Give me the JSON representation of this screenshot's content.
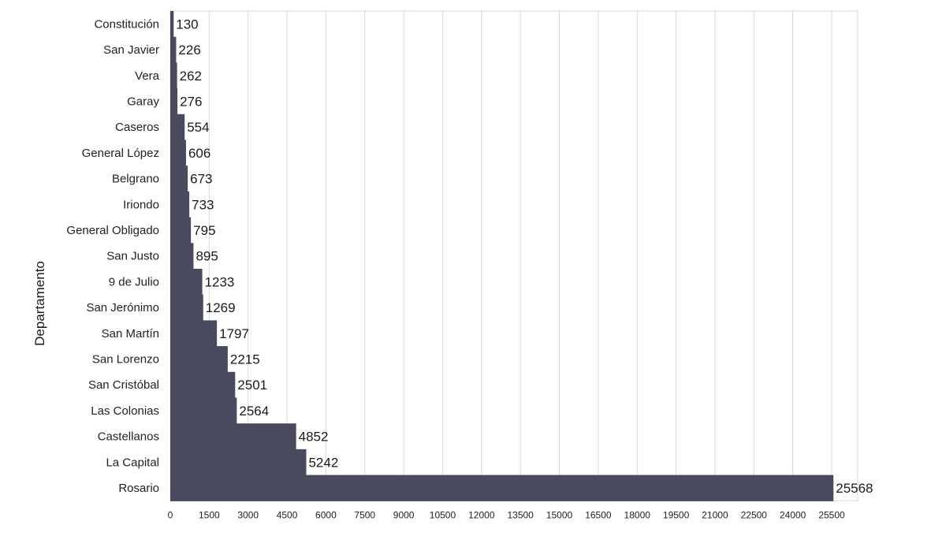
{
  "chart_data": {
    "type": "bar",
    "orientation": "horizontal",
    "title": "",
    "xlabel": "",
    "ylabel": "Departamento",
    "categories": [
      "Constitución",
      "San Javier",
      "Vera",
      "Garay",
      "Caseros",
      "General López",
      "Belgrano",
      "Iriondo",
      "General Obligado",
      "San Justo",
      "9 de Julio",
      "San Jerónimo",
      "San Martín",
      "San Lorenzo",
      "San Cristóbal",
      "Las Colonias",
      "Castellanos",
      "La Capital",
      "Rosario"
    ],
    "values": [
      130,
      226,
      262,
      276,
      554,
      606,
      673,
      733,
      795,
      895,
      1233,
      1269,
      1797,
      2215,
      2501,
      2564,
      4852,
      5242,
      25568
    ],
    "x_ticks": [
      0,
      1500,
      3000,
      4500,
      6000,
      7500,
      9000,
      10500,
      12000,
      13500,
      15000,
      16500,
      18000,
      19500,
      21000,
      22500,
      24000,
      25500
    ],
    "xlim": [
      0,
      26500
    ],
    "grid": "vertical",
    "bar_color": "#4a4a5e",
    "data_labels": true
  }
}
